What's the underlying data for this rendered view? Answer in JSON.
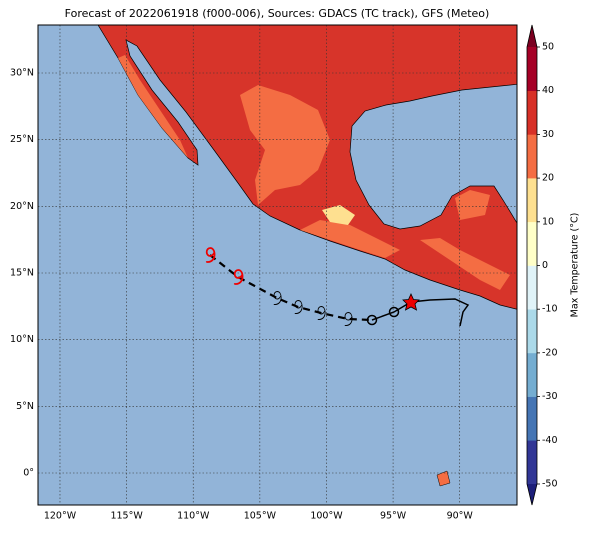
{
  "title": "Forecast of 2022061918 (f000-006), Sources: GDACS (TC track), GFS (Meteo)",
  "map": {
    "xlim": [
      -121.65,
      -85.7
    ],
    "ylim": [
      -2.4,
      33.6
    ],
    "grid": true,
    "lon_ticks": [
      {
        "value": -120,
        "label": "120°W"
      },
      {
        "value": -115,
        "label": "115°W"
      },
      {
        "value": -110,
        "label": "110°W"
      },
      {
        "value": -105,
        "label": "105°W"
      },
      {
        "value": -100,
        "label": "100°W"
      },
      {
        "value": -95,
        "label": "95°W"
      },
      {
        "value": -90,
        "label": "90°W"
      }
    ],
    "lat_ticks": [
      {
        "value": 0,
        "label": "0°"
      },
      {
        "value": 5,
        "label": "5°N"
      },
      {
        "value": 10,
        "label": "10°N"
      },
      {
        "value": 15,
        "label": "15°N"
      },
      {
        "value": 20,
        "label": "20°N"
      },
      {
        "value": 25,
        "label": "25°N"
      },
      {
        "value": 30,
        "label": "30°N"
      }
    ],
    "ocean_color": "#92b4d8",
    "land_color": "#d7342a"
  },
  "colorbar": {
    "label": "Max Temperature (°C)",
    "lim": [
      -50,
      50
    ],
    "ticks": [
      50,
      40,
      30,
      20,
      10,
      0,
      -10,
      -20,
      -30,
      -40,
      -50
    ],
    "under": "#1d1f7a",
    "over": "#7a0020",
    "colors": [
      "#313695",
      "#4575b4",
      "#74add1",
      "#abd9e9",
      "#e0f3f8",
      "#ffffc8",
      "#fee090",
      "#f46d43",
      "#d73027",
      "#a50026"
    ]
  }
}
